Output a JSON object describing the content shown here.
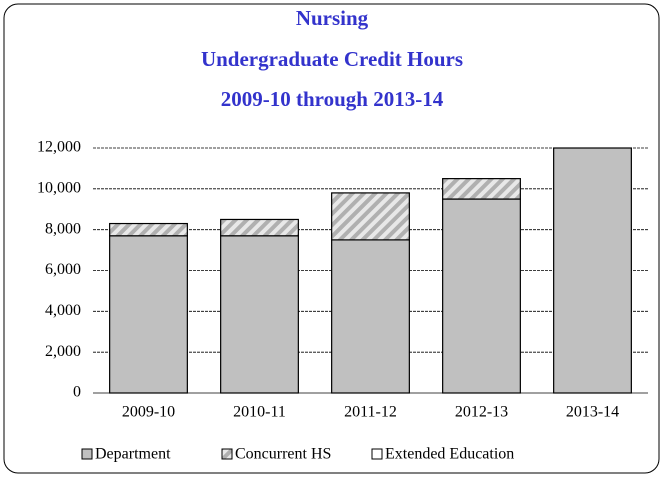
{
  "chart_data": {
    "type": "stacked_bar",
    "title": "Nursing",
    "subtitle": [
      "Undergraduate Credit Hours",
      "2009-10 through 2013-14"
    ],
    "categories": [
      "2009-10",
      "2010-11",
      "2011-12",
      "2012-13",
      "2013-14"
    ],
    "series": [
      {
        "name": "Department",
        "color": "#c0c0c0",
        "pattern": "solid",
        "values": [
          7700,
          7700,
          7500,
          9500,
          12000
        ]
      },
      {
        "name": "Concurrent HS",
        "color": "#c0c0c0",
        "pattern": "hatch",
        "values": [
          600,
          800,
          2300,
          1000,
          0
        ]
      },
      {
        "name": "Extended Education",
        "color": "#ffffff",
        "pattern": "solid",
        "values": [
          0,
          0,
          0,
          0,
          0
        ]
      }
    ],
    "ylim": [
      0,
      12000
    ],
    "yticks": [
      0,
      {
        "value": 2000,
        "label": "2,000"
      },
      {
        "value": 4000,
        "label": "4,000"
      },
      {
        "value": 6000,
        "label": "6,000"
      },
      {
        "value": 8000,
        "label": "8,000"
      },
      {
        "value": 10000,
        "label": "10,000"
      },
      {
        "value": 12000,
        "label": "12,000"
      }
    ],
    "grid": true,
    "legend": "bottom"
  }
}
